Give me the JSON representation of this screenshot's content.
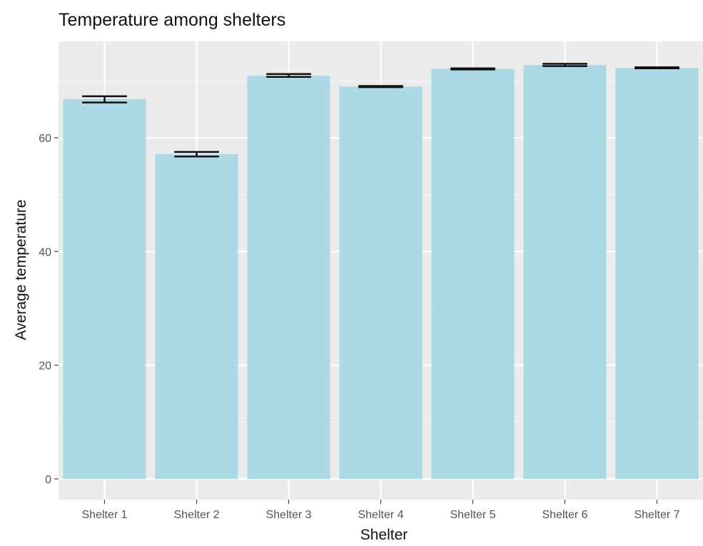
{
  "chart_data": {
    "type": "bar",
    "title": "Temperature among shelters",
    "xlabel": "Shelter",
    "ylabel": "Average temperature",
    "categories": [
      "Shelter 1",
      "Shelter 2",
      "Shelter 3",
      "Shelter 4",
      "Shelter 5",
      "Shelter 6",
      "Shelter 7"
    ],
    "values": [
      66.8,
      57.1,
      70.9,
      69.0,
      72.1,
      72.8,
      72.3
    ],
    "error_low": [
      66.2,
      56.7,
      70.7,
      68.9,
      72.0,
      72.6,
      72.2
    ],
    "error_high": [
      67.3,
      57.5,
      71.2,
      69.1,
      72.2,
      73.0,
      72.4
    ],
    "ylim": [
      0,
      75.9
    ],
    "yticks": [
      0,
      20,
      40,
      60
    ],
    "grid": true,
    "legend": "none",
    "colors": {
      "bar": "#add8e6",
      "panel": "#ebebeb",
      "errorbar": "#111111"
    }
  }
}
